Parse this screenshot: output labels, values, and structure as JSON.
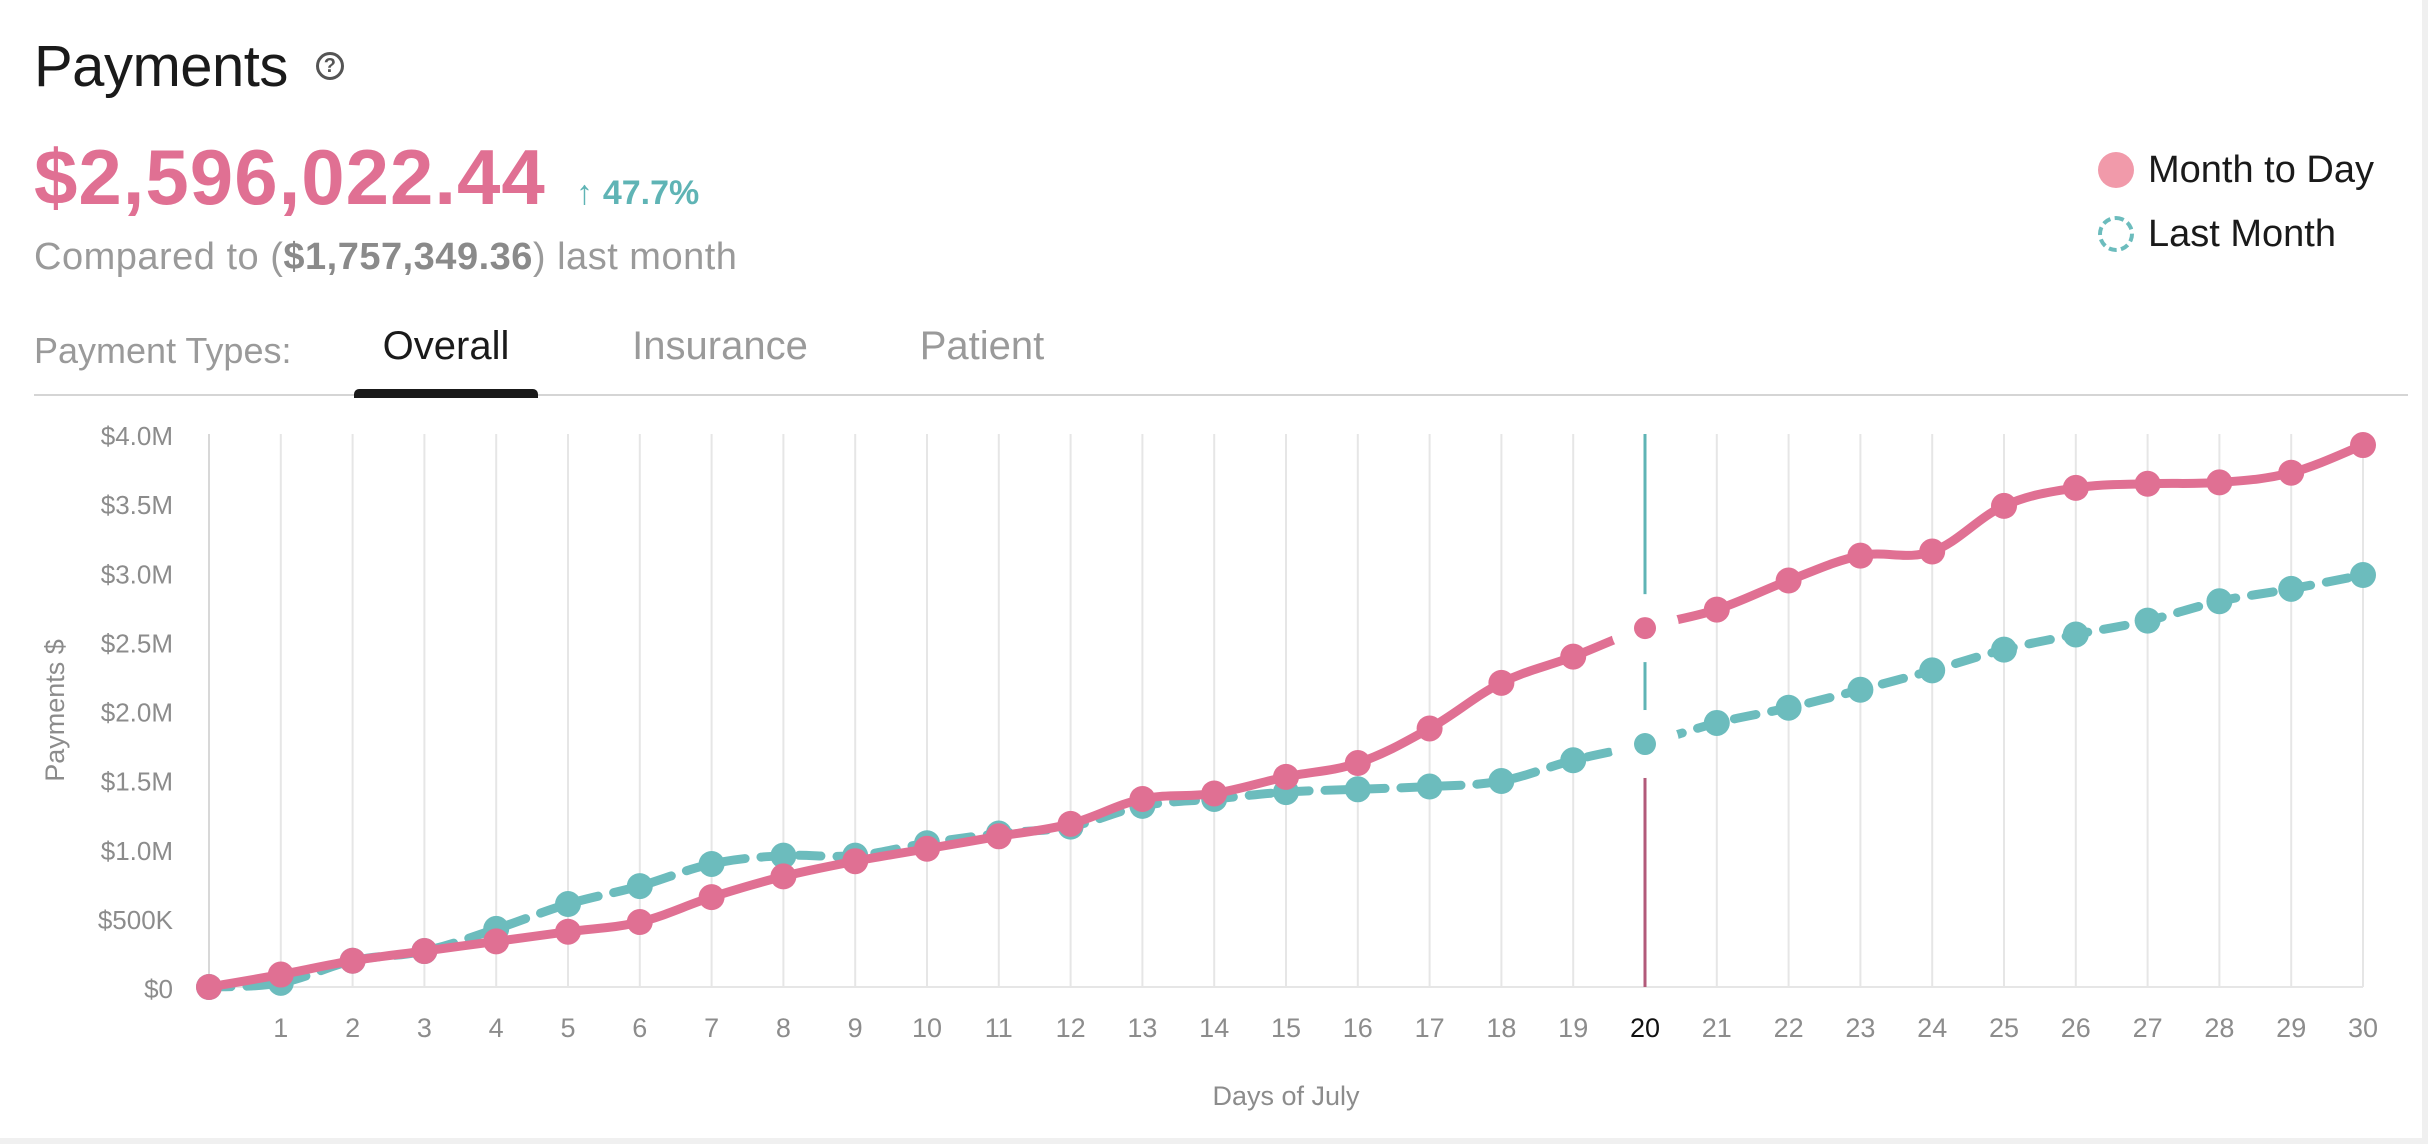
{
  "header": {
    "title": "Payments",
    "help_icon": "help-circle-icon",
    "amount": "$2,596,022.44",
    "change_icon": "arrow-up-icon",
    "change_arrow": "↑",
    "change": "47.7%",
    "compare_prefix": "Compared to (",
    "compare_value": "$1,757,349.36",
    "compare_suffix": ") last month"
  },
  "legend": {
    "items": [
      {
        "label": "Month to Day",
        "color": "#e07093",
        "style": "solid"
      },
      {
        "label": "Last Month",
        "color": "#6cbcbd",
        "style": "dashed"
      }
    ]
  },
  "tabs": {
    "label": "Payment Types:",
    "items": [
      {
        "label": "Overall",
        "active": true
      },
      {
        "label": "Insurance",
        "active": false
      },
      {
        "label": "Patient",
        "active": false
      }
    ]
  },
  "chart_data": {
    "type": "line",
    "xlabel": "Days of July",
    "ylabel": "Payments $",
    "x": [
      0,
      1,
      2,
      3,
      4,
      5,
      6,
      7,
      8,
      9,
      10,
      11,
      12,
      13,
      14,
      15,
      16,
      17,
      18,
      19,
      20,
      21,
      22,
      23,
      24,
      25,
      26,
      27,
      28,
      29,
      30
    ],
    "x_tick_labels": [
      "1",
      "2",
      "3",
      "4",
      "5",
      "6",
      "7",
      "8",
      "9",
      "10",
      "11",
      "12",
      "13",
      "14",
      "15",
      "16",
      "17",
      "18",
      "19",
      "20",
      "21",
      "22",
      "23",
      "24",
      "25",
      "26",
      "27",
      "28",
      "29",
      "30"
    ],
    "highlighted_x": 20,
    "ylim": [
      0,
      4000000
    ],
    "y_ticks": [
      0,
      500000,
      1000000,
      1500000,
      2000000,
      2500000,
      3000000,
      3500000,
      4000000
    ],
    "y_tick_labels": [
      "$0",
      "$500K",
      "$1.0M",
      "$1.5M",
      "$2.0M",
      "$2.5M",
      "$3.0M",
      "$3.5M",
      "$4.0M"
    ],
    "grid": "vertical",
    "legend_position": "top-right",
    "series": [
      {
        "name": "Month to Day",
        "color": "#e07093",
        "line": "solid",
        "values": [
          0,
          90000,
          190000,
          260000,
          330000,
          400000,
          470000,
          650000,
          800000,
          910000,
          1000000,
          1090000,
          1180000,
          1360000,
          1400000,
          1520000,
          1620000,
          1870000,
          2200000,
          2390000,
          2596022,
          2730000,
          2940000,
          3120000,
          3150000,
          3480000,
          3610000,
          3640000,
          3650000,
          3720000,
          3920000
        ]
      },
      {
        "name": "Last Month",
        "color": "#6cbcbd",
        "line": "dashed",
        "values": [
          0,
          30000,
          190000,
          260000,
          420000,
          600000,
          730000,
          890000,
          950000,
          950000,
          1040000,
          1110000,
          1160000,
          1310000,
          1360000,
          1410000,
          1430000,
          1450000,
          1490000,
          1640000,
          1757349,
          1910000,
          2020000,
          2150000,
          2290000,
          2440000,
          2550000,
          2650000,
          2790000,
          2880000,
          2980000
        ]
      }
    ]
  }
}
